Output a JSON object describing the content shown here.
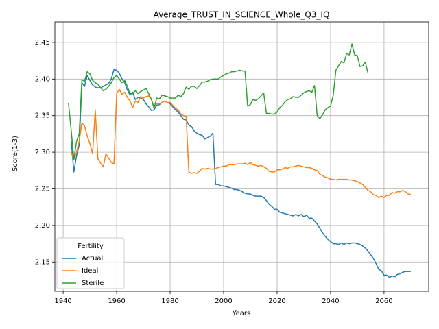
{
  "chart_data": {
    "type": "line",
    "title": "Average_TRUST_IN_SCIENCE_Whole_Q3_IQ",
    "xlabel": "Years",
    "ylabel": "Score(1-3)",
    "legend_title": "Fertility",
    "legend": "lower left",
    "grid": true,
    "xlim": [
      1936.9,
      2076.7
    ],
    "ylim": [
      2.11,
      2.478
    ],
    "xticks": [
      1940,
      1960,
      1980,
      2000,
      2020,
      2040,
      2060
    ],
    "yticks": [
      2.15,
      {
        "value": 2.2,
        "label": "2.20"
      },
      2.25,
      {
        "value": 2.3,
        "label": "2.30"
      },
      2.35,
      {
        "value": 2.4,
        "label": "2.40"
      },
      2.45
    ],
    "x": [
      1942,
      1943,
      1944,
      1945,
      1946,
      1947,
      1948,
      1949,
      1950,
      1951,
      1952,
      1953,
      1954,
      1955,
      1956,
      1957,
      1958,
      1959,
      1960,
      1961,
      1962,
      1963,
      1964,
      1965,
      1966,
      1967,
      1968,
      1969,
      1970,
      1971,
      1972,
      1973,
      1974,
      1975,
      1976,
      1977,
      1978,
      1979,
      1980,
      1981,
      1982,
      1983,
      1984,
      1985,
      1986,
      1987,
      1988,
      1989,
      1990,
      1991,
      1992,
      1993,
      1994,
      1995,
      1996,
      1997,
      1998,
      1999,
      2000,
      2001,
      2002,
      2003,
      2004,
      2005,
      2006,
      2007,
      2008,
      2009,
      2010,
      2011,
      2012,
      2013,
      2014,
      2015,
      2016,
      2017,
      2018,
      2019,
      2020,
      2021,
      2022,
      2023,
      2024,
      2025,
      2026,
      2027,
      2028,
      2029,
      2030,
      2031,
      2032,
      2033,
      2034,
      2035,
      2036,
      2037,
      2038,
      2039,
      2040,
      2041,
      2042,
      2043,
      2044,
      2045,
      2046,
      2047,
      2048,
      2049,
      2050,
      2051,
      2052,
      2053,
      2054,
      2055,
      2056,
      2057,
      2058,
      2059,
      2060,
      2061,
      2062,
      2063,
      2064,
      2065,
      2066,
      2067,
      2068,
      2069,
      2070
    ],
    "series": [
      {
        "name": "Actual",
        "color": "#1f77b4",
        "values": [
          null,
          2.316,
          2.273,
          2.295,
          2.31,
          2.395,
          2.39,
          2.405,
          2.398,
          2.392,
          2.389,
          2.388,
          2.388,
          2.39,
          2.392,
          2.394,
          2.4,
          2.413,
          2.412,
          2.408,
          2.4,
          2.395,
          2.385,
          2.378,
          2.382,
          2.372,
          2.375,
          2.374,
          2.372,
          2.366,
          2.362,
          2.357,
          2.358,
          2.364,
          2.365,
          2.368,
          2.37,
          2.368,
          2.366,
          2.362,
          2.358,
          2.355,
          2.35,
          2.345,
          2.344,
          2.337,
          2.335,
          2.329,
          2.326,
          2.324,
          2.323,
          2.318,
          2.32,
          2.322,
          2.326,
          2.256,
          2.256,
          2.254,
          2.254,
          2.253,
          2.252,
          2.251,
          2.249,
          2.249,
          2.248,
          2.246,
          2.244,
          2.243,
          2.243,
          2.241,
          2.24,
          2.24,
          2.24,
          2.238,
          2.234,
          2.229,
          2.226,
          2.222,
          2.222,
          2.218,
          2.217,
          2.216,
          2.215,
          2.214,
          2.213,
          2.215,
          2.213,
          2.215,
          2.212,
          2.214,
          2.21,
          2.21,
          2.206,
          2.202,
          2.196,
          2.19,
          2.185,
          2.181,
          2.178,
          2.175,
          2.175,
          2.174,
          2.176,
          2.174,
          2.176,
          2.175,
          2.176,
          2.176,
          2.175,
          2.174,
          2.172,
          2.169,
          2.165,
          2.16,
          2.155,
          2.148,
          2.14,
          2.138,
          2.132,
          2.132,
          2.129,
          2.131,
          2.13,
          2.133,
          2.134,
          2.136,
          2.137,
          2.137,
          2.137
        ]
      },
      {
        "name": "Ideal",
        "color": "#ff7f0e",
        "values": [
          null,
          2.3,
          2.29,
          2.3,
          2.315,
          2.34,
          2.336,
          2.322,
          2.312,
          2.298,
          2.358,
          2.291,
          2.285,
          2.28,
          2.298,
          2.292,
          2.286,
          2.284,
          2.38,
          2.386,
          2.379,
          2.382,
          2.375,
          2.37,
          2.361,
          2.37,
          2.368,
          2.376,
          2.374,
          2.376,
          2.377,
          2.372,
          2.362,
          2.366,
          2.366,
          2.368,
          2.37,
          2.368,
          2.368,
          2.364,
          2.36,
          2.358,
          2.352,
          2.35,
          2.349,
          2.273,
          2.271,
          2.272,
          2.271,
          2.274,
          2.278,
          2.277,
          2.278,
          2.277,
          2.277,
          2.278,
          2.279,
          2.28,
          2.281,
          2.281,
          2.283,
          2.283,
          2.283,
          2.284,
          2.284,
          2.284,
          2.285,
          2.283,
          2.286,
          2.283,
          2.282,
          2.281,
          2.282,
          2.28,
          2.278,
          2.274,
          2.273,
          2.273,
          2.276,
          2.276,
          2.277,
          2.279,
          2.278,
          2.28,
          2.28,
          2.281,
          2.282,
          2.281,
          2.28,
          2.279,
          2.279,
          2.278,
          2.276,
          2.275,
          2.27,
          2.268,
          2.266,
          2.265,
          2.263,
          2.263,
          2.262,
          2.263,
          2.263,
          2.263,
          2.263,
          2.262,
          2.262,
          2.261,
          2.26,
          2.258,
          2.256,
          2.252,
          2.248,
          2.246,
          2.242,
          2.241,
          2.238,
          2.24,
          2.238,
          2.241,
          2.241,
          2.245,
          2.244,
          2.246,
          2.246,
          2.248,
          2.246,
          2.243,
          2.242
        ]
      },
      {
        "name": "Sterile",
        "color": "#2ca02c",
        "values": [
          2.367,
          2.33,
          2.29,
          2.315,
          2.325,
          2.399,
          2.397,
          2.41,
          2.407,
          2.398,
          2.395,
          2.393,
          2.388,
          2.384,
          2.386,
          2.39,
          2.395,
          2.402,
          2.405,
          2.4,
          2.395,
          2.398,
          2.39,
          2.38,
          2.38,
          2.384,
          2.38,
          2.383,
          2.385,
          2.387,
          2.38,
          2.372,
          2.36,
          2.374,
          2.373,
          2.378,
          2.377,
          2.376,
          2.374,
          2.374,
          2.374,
          2.378,
          2.376,
          2.38,
          2.389,
          2.386,
          2.39,
          2.39,
          2.387,
          2.391,
          2.396,
          2.396,
          2.397,
          2.399,
          2.4,
          2.4,
          2.4,
          2.403,
          2.405,
          2.407,
          2.408,
          2.41,
          2.41,
          2.411,
          2.412,
          2.411,
          2.411,
          2.363,
          2.365,
          2.372,
          2.371,
          2.373,
          2.377,
          2.381,
          2.353,
          2.353,
          2.352,
          2.352,
          2.355,
          2.361,
          2.364,
          2.369,
          2.372,
          2.373,
          2.376,
          2.375,
          2.375,
          2.378,
          2.381,
          2.383,
          2.384,
          2.382,
          2.391,
          2.35,
          2.346,
          2.351,
          2.358,
          2.361,
          2.363,
          2.378,
          2.412,
          2.418,
          2.424,
          2.422,
          2.435,
          2.433,
          2.448,
          2.433,
          2.432,
          2.417,
          2.418,
          2.423,
          2.408,
          null,
          null,
          null,
          null,
          null,
          null,
          null,
          null,
          null,
          null,
          null,
          null,
          null,
          null,
          null,
          null
        ]
      }
    ]
  }
}
